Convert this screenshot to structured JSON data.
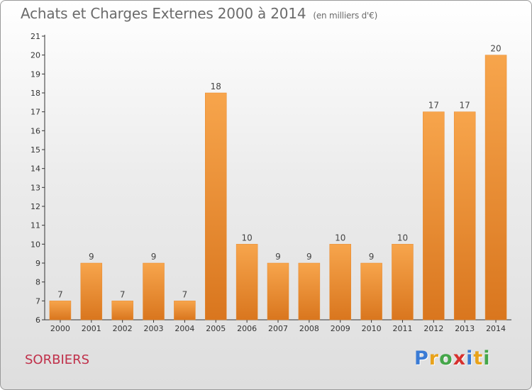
{
  "chart_data": {
    "type": "bar",
    "title": "Achats et Charges Externes 2000 à 2014",
    "subtitle": "(en milliers d'€)",
    "categories": [
      "2000",
      "2001",
      "2002",
      "2003",
      "2004",
      "2005",
      "2006",
      "2007",
      "2008",
      "2009",
      "2010",
      "2011",
      "2012",
      "2013",
      "2014"
    ],
    "values": [
      7,
      9,
      7,
      9,
      7,
      18,
      10,
      9,
      9,
      10,
      9,
      10,
      17,
      17,
      20
    ],
    "ylim": [
      6,
      21
    ],
    "yticks": [
      6,
      7,
      8,
      9,
      10,
      11,
      12,
      13,
      14,
      15,
      16,
      17,
      18,
      19,
      20,
      21
    ],
    "grid": false,
    "bar_color": "#f29a3e"
  },
  "footer": {
    "city": "SORBIERS",
    "logo_letters": [
      "P",
      "r",
      "o",
      "x",
      "i",
      "t",
      "i"
    ]
  }
}
